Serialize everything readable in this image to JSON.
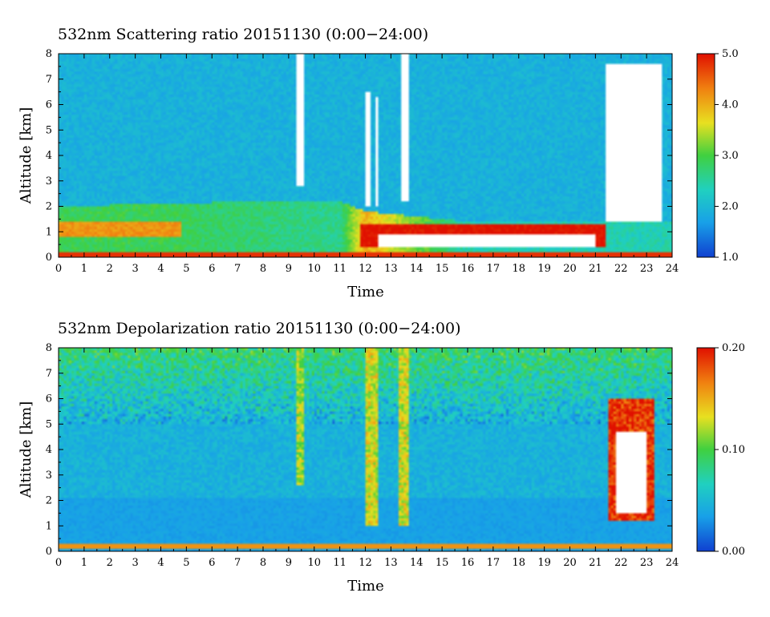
{
  "chart_data": [
    {
      "type": "heatmap",
      "title": "532nm Scattering ratio  20151130 (0:00−24:00)",
      "xlabel": "Time",
      "ylabel": "Altitude [km]",
      "xlim": [
        0,
        24
      ],
      "ylim": [
        0,
        8
      ],
      "x_ticks": [
        "0",
        "1",
        "2",
        "3",
        "4",
        "5",
        "6",
        "7",
        "8",
        "9",
        "10",
        "11",
        "12",
        "13",
        "14",
        "15",
        "16",
        "17",
        "18",
        "19",
        "20",
        "21",
        "22",
        "23",
        "24"
      ],
      "y_ticks": [
        "0",
        "1",
        "2",
        "3",
        "4",
        "5",
        "6",
        "7",
        "8"
      ],
      "colorbar": {
        "range": [
          1.0,
          5.0
        ],
        "ticks": [
          "1.0",
          "2.0",
          "3.0",
          "4.0",
          "5.0"
        ],
        "colors": [
          "#1040d0",
          "#18a0e8",
          "#20d0c0",
          "#40d040",
          "#e8e020",
          "#f08010",
          "#e01000"
        ]
      },
      "features": {
        "background_value": 1.9,
        "boundary_layer": [
          {
            "x": 0,
            "top_km": 2.0,
            "value": 2.9
          },
          {
            "x": 4,
            "top_km": 2.1,
            "value": 2.9
          },
          {
            "x": 8,
            "top_km": 2.2,
            "value": 2.7
          },
          {
            "x": 11,
            "top_km": 2.2,
            "value": 2.6
          },
          {
            "x": 12,
            "top_km": 1.8,
            "value": 4.0
          },
          {
            "x": 16,
            "top_km": 1.4,
            "value": 2.4
          },
          {
            "x": 21.4,
            "top_km": 1.4,
            "value": 2.4
          }
        ],
        "saturated_regions": [
          {
            "x0": 0,
            "x1": 4.8,
            "y0": 0.8,
            "y1": 1.4,
            "value": 4.2
          },
          {
            "x0": 11.8,
            "x1": 21.4,
            "y0": 0.35,
            "y1": 1.3,
            "value": 5.0
          }
        ],
        "no_data_regions": [
          {
            "x0": 9.35,
            "x1": 9.55,
            "y0": 2.8,
            "y1": 8.0
          },
          {
            "x0": 12.05,
            "x1": 12.2,
            "y0": 2.0,
            "y1": 6.5
          },
          {
            "x0": 12.35,
            "x1": 12.5,
            "y0": 2.0,
            "y1": 6.3
          },
          {
            "x0": 13.45,
            "x1": 13.65,
            "y0": 2.2,
            "y1": 8.0
          },
          {
            "x0": 21.45,
            "x1": 23.65,
            "y0": 1.45,
            "y1": 7.6
          },
          {
            "x0": 12.5,
            "x1": 21.0,
            "y0": 0.4,
            "y1": 0.9
          }
        ]
      }
    },
    {
      "type": "heatmap",
      "title": "532nm Depolarization ratio  20151130 (0:00−24:00)",
      "xlabel": "Time",
      "ylabel": "Altitude [km]",
      "xlim": [
        0,
        24
      ],
      "ylim": [
        0,
        8
      ],
      "x_ticks": [
        "0",
        "1",
        "2",
        "3",
        "4",
        "5",
        "6",
        "7",
        "8",
        "9",
        "10",
        "11",
        "12",
        "13",
        "14",
        "15",
        "16",
        "17",
        "18",
        "19",
        "20",
        "21",
        "22",
        "23",
        "24"
      ],
      "y_ticks": [
        "0",
        "1",
        "2",
        "3",
        "4",
        "5",
        "6",
        "7",
        "8"
      ],
      "colorbar": {
        "range": [
          0.0,
          0.2
        ],
        "ticks": [
          "0.00",
          "0.10",
          "0.20"
        ],
        "colors": [
          "#1040d0",
          "#18a0e8",
          "#20d0c0",
          "#40d040",
          "#e8e020",
          "#f08010",
          "#e01000"
        ]
      },
      "features": {
        "background_value": 0.045,
        "upper_noise_value": 0.09,
        "surface_layer": {
          "y0": 0.05,
          "y1": 0.25,
          "value": 0.16
        },
        "high_depol_columns": [
          {
            "x0": 9.3,
            "x1": 9.6,
            "y0": 2.6,
            "y1": 8.0,
            "value": 0.12
          },
          {
            "x0": 12.0,
            "x1": 12.5,
            "y0": 1.0,
            "y1": 8.0,
            "value": 0.13
          },
          {
            "x0": 13.3,
            "x1": 13.7,
            "y0": 1.0,
            "y1": 8.0,
            "value": 0.13
          },
          {
            "x0": 21.5,
            "x1": 23.3,
            "y0": 1.2,
            "y1": 6.0,
            "value": 0.19
          }
        ],
        "no_data_regions": [
          {
            "x0": 21.8,
            "x1": 23.0,
            "y0": 1.5,
            "y1": 4.7
          }
        ]
      }
    }
  ]
}
